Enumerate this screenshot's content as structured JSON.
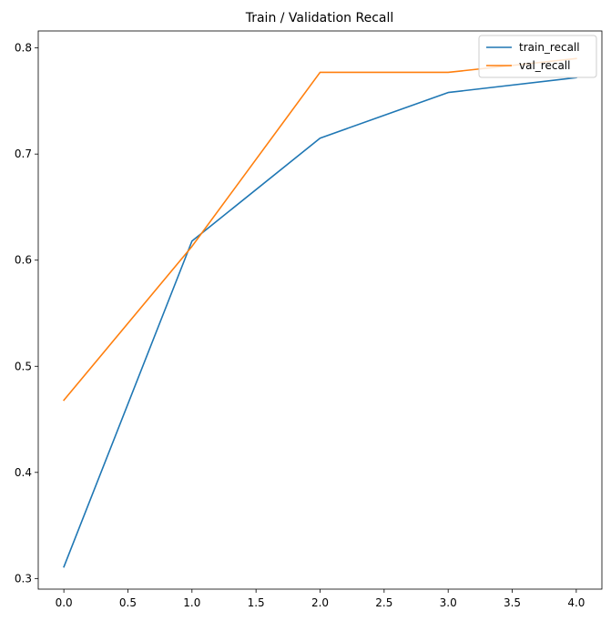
{
  "chart_data": {
    "type": "line",
    "title": "Train / Validation Recall",
    "xlabel": "",
    "ylabel": "",
    "x": [
      0,
      1,
      2,
      3,
      4
    ],
    "series": [
      {
        "name": "train_recall",
        "values": [
          0.311,
          0.618,
          0.715,
          0.758,
          0.772
        ],
        "color": "#1f77b4"
      },
      {
        "name": "val_recall",
        "values": [
          0.468,
          0.613,
          0.777,
          0.777,
          0.79
        ],
        "color": "#ff7f0e"
      }
    ],
    "xlim": [
      -0.2,
      4.2
    ],
    "ylim": [
      0.29,
      0.816
    ],
    "xticks": [
      "0.0",
      "0.5",
      "1.0",
      "1.5",
      "2.0",
      "2.5",
      "3.0",
      "3.5",
      "4.0"
    ],
    "yticks": [
      "0.3",
      "0.4",
      "0.5",
      "0.6",
      "0.7",
      "0.8"
    ],
    "grid": false,
    "legend_position": "top-right"
  }
}
